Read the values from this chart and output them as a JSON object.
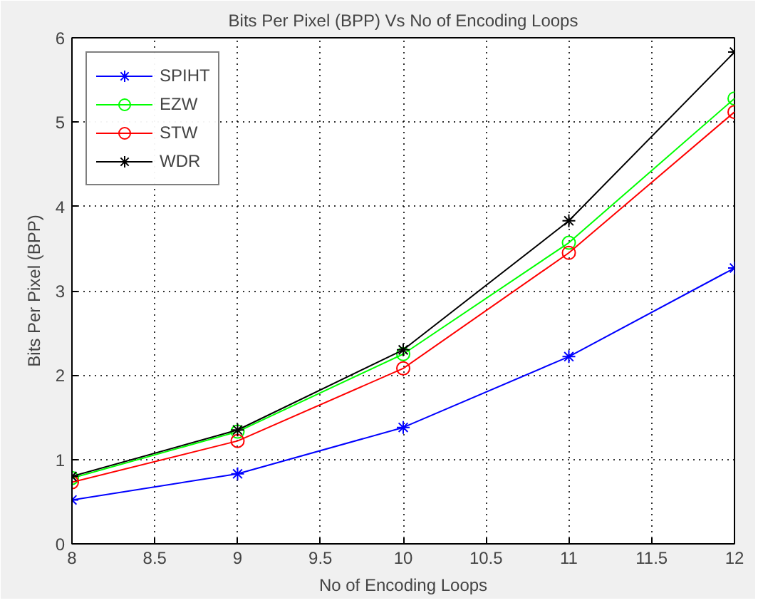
{
  "chart_data": {
    "type": "line",
    "title": "Bits Per Pixel (BPP) Vs No of Encoding Loops",
    "xlabel": "No of Encoding Loops",
    "ylabel": "Bits Per Pixel (BPP)",
    "x": [
      8,
      9,
      10,
      11,
      12
    ],
    "series": [
      {
        "name": "SPIHT",
        "color": "#0000ff",
        "marker": "cross",
        "values": [
          0.52,
          0.83,
          1.38,
          2.22,
          3.27
        ]
      },
      {
        "name": "EZW",
        "color": "#00ff00",
        "marker": "circle",
        "values": [
          0.78,
          1.33,
          2.25,
          3.57,
          5.28
        ]
      },
      {
        "name": "STW",
        "color": "#ff0000",
        "marker": "circle",
        "values": [
          0.73,
          1.22,
          2.08,
          3.45,
          5.12
        ]
      },
      {
        "name": "WDR",
        "color": "#000000",
        "marker": "cross",
        "values": [
          0.8,
          1.35,
          2.3,
          3.83,
          5.83
        ]
      }
    ],
    "xlim": [
      8,
      12
    ],
    "ylim": [
      0,
      6
    ],
    "xticks": [
      8,
      8.5,
      9,
      9.5,
      10,
      10.5,
      11,
      11.5,
      12
    ],
    "yticks": [
      0,
      1,
      2,
      3,
      4,
      5,
      6
    ],
    "grid": true,
    "legend": "top left",
    "line_style": "solid"
  }
}
